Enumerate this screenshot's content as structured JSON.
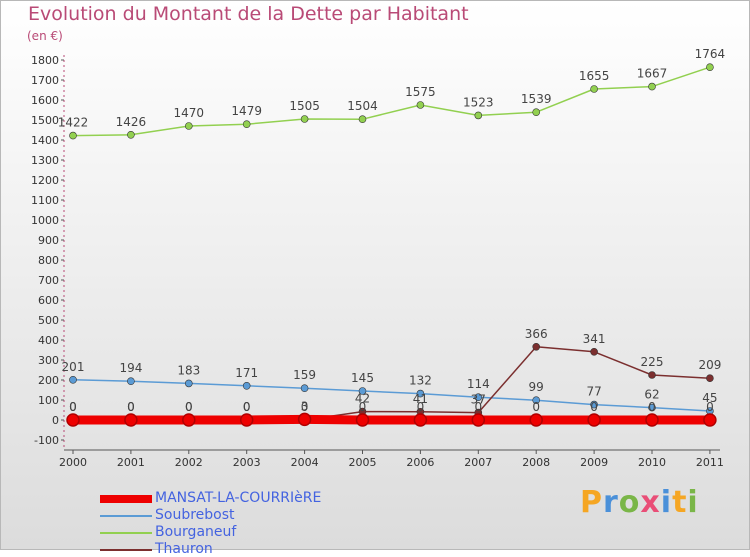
{
  "chart_data": {
    "type": "line",
    "title": "Evolution du Montant de la Dette par Habitant",
    "subtitle": "(en €)",
    "categories": [
      "2000",
      "2001",
      "2002",
      "2003",
      "2004",
      "2005",
      "2006",
      "2007",
      "2008",
      "2009",
      "2010",
      "2011"
    ],
    "ylim": [
      -100,
      1800
    ],
    "yticks": [
      -100,
      0,
      100,
      200,
      300,
      400,
      500,
      600,
      700,
      800,
      900,
      1000,
      1100,
      1200,
      1300,
      1400,
      1500,
      1600,
      1700,
      1800
    ],
    "grid": false,
    "legend_position": "bottom-left",
    "series": [
      {
        "name": "MANSAT-LA-COURRIèRE",
        "color": "#ee0000",
        "values": [
          0,
          0,
          0,
          0,
          3,
          0,
          0,
          0,
          0,
          0,
          0,
          0
        ],
        "labels": [
          "0",
          "0",
          "0",
          "0",
          "3",
          "0",
          "0",
          "0",
          "0",
          "0",
          "0",
          "0"
        ]
      },
      {
        "name": "Soubrebost",
        "color": "#5b9bd5",
        "values": [
          201,
          194,
          183,
          171,
          159,
          145,
          132,
          114,
          99,
          77,
          62,
          45
        ],
        "labels": [
          "201",
          "194",
          "183",
          "171",
          "159",
          "145",
          "132",
          "114",
          "99",
          "77",
          "62",
          "45"
        ]
      },
      {
        "name": "Bourganeuf",
        "color": "#92d050",
        "values": [
          1422,
          1426,
          1470,
          1479,
          1505,
          1504,
          1575,
          1523,
          1539,
          1655,
          1667,
          1764
        ],
        "labels": [
          "1422",
          "1426",
          "1470",
          "1479",
          "1505",
          "1504",
          "1575",
          "1523",
          "1539",
          "1655",
          "1667",
          "1764"
        ]
      },
      {
        "name": "Thauron",
        "color": "#7b2f2f",
        "values": [
          0,
          0,
          0,
          0,
          0,
          42,
          41,
          37,
          366,
          341,
          225,
          209
        ],
        "labels": [
          "0",
          "0",
          "0",
          "0",
          "0",
          "42",
          "41",
          "37",
          "366",
          "341",
          "225",
          "209"
        ]
      }
    ]
  },
  "logo": {
    "letters": [
      "P",
      "r",
      "o",
      "x",
      "i",
      "t",
      "i"
    ],
    "colors": [
      "#f5a623",
      "#4a90d9",
      "#7ab648",
      "#e94e77",
      "#4a90d9",
      "#f5a623",
      "#7ab648"
    ]
  }
}
